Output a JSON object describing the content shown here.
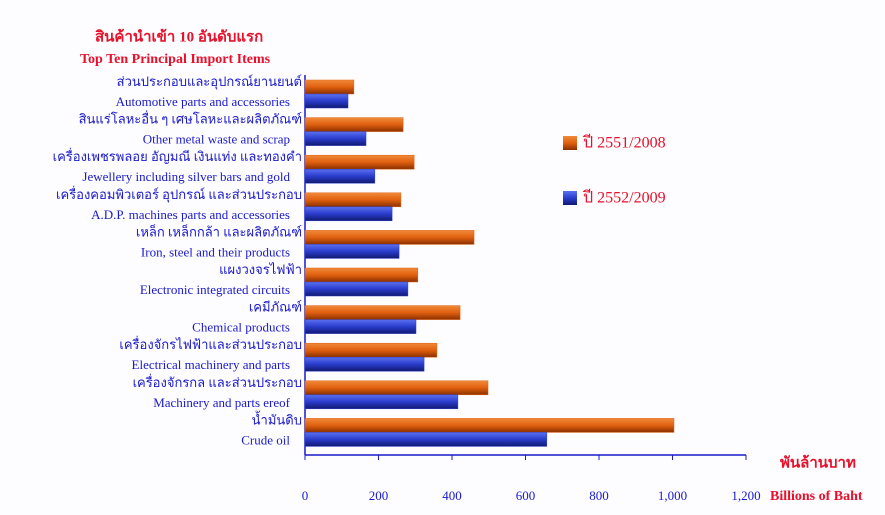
{
  "chart_data": {
    "type": "hbar",
    "title": "สินค้านำเข้า 10 อันดับแรก",
    "subtitle": "Top Ten Principal Import Items",
    "categories": [
      "ส่วนประกอบและอุปกรณ์ยานยนต์",
      "สินแร่โลหะอื่น ๆ เศษโลหะและผลิตภัณฑ์",
      "เครื่องเพชรพลอย อัญมณี เงินแท่ง และทองคำ",
      "เครื่องคอมพิวเตอร์ อุปกรณ์ และส่วนประกอบ",
      "เหล็ก เหล็กกล้า และผลิตภัณฑ์",
      "แผงวงจรไฟฟ้า",
      "เคมีภัณฑ์",
      "เครื่องจักรไฟฟ้าและส่วนประกอบ",
      "เครื่องจักรกล และส่วนประกอบ",
      "น้ำมันดิบ"
    ],
    "category_subtitles": [
      "Automotive parts and accessories",
      "Other metal waste and scrap",
      "Jewellery including silver bars and gold",
      "A.D.P. machines parts and  accessories",
      "Iron, steel and their products",
      "Electronic integrated circuits",
      "Chemical products",
      "Electrical machinery and parts",
      "Machinery and parts ereof",
      "Crude oil"
    ],
    "series": [
      {
        "name": "ปี 2551/2008",
        "color": "#e0600f",
        "values": [
          133,
          267,
          297,
          261,
          460,
          307,
          422,
          359,
          498,
          1004
        ]
      },
      {
        "name": "ปี 2552/2009",
        "color": "#2a3ccc",
        "values": [
          117,
          166,
          190,
          237,
          256,
          280,
          302,
          324,
          416,
          658
        ]
      }
    ],
    "xlim": [
      0,
      1200
    ],
    "xticks": [
      0,
      200,
      400,
      600,
      800,
      {
        "value": 1000,
        "label": "1,000"
      },
      {
        "value": 1200,
        "label": "1,200"
      }
    ],
    "unit_label_th": "พันล้านบาท",
    "xlabel": "Billions of Baht"
  }
}
